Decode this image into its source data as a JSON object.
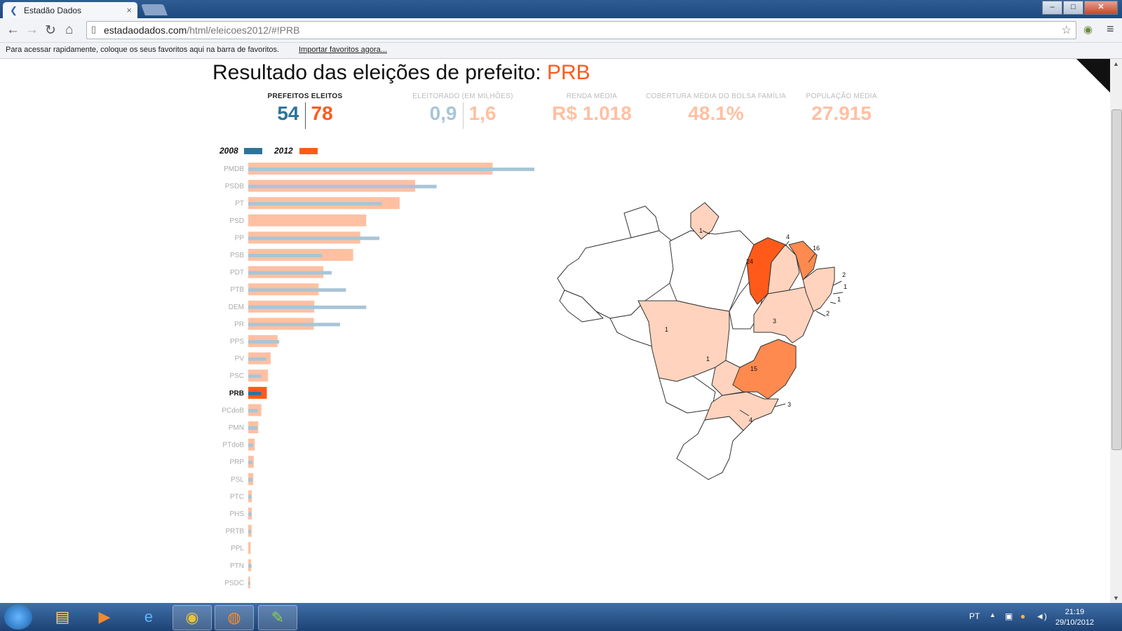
{
  "browser": {
    "tab_title": "Estadão Dados",
    "tab_close": "×",
    "url_host": "estadaodados.com",
    "url_rest": "/html/eleicoes2012/#!PRB",
    "bookmarks_msg": "Para acessar rapidamente, coloque os seus favoritos aqui na barra de favoritos.",
    "bookmarks_import": "Importar favoritos agora...",
    "win_min": "–",
    "win_max": "□",
    "win_close": "✕"
  },
  "page": {
    "title_prefix": "Resultado das eleições de prefeito: ",
    "title_party": "PRB",
    "stats": {
      "prefeitos_label": "PREFEITOS ELEITOS",
      "prefeitos_2008": "54",
      "prefeitos_2012": "78",
      "eleitorado_label": "ELEITORADO (EM MILHÕES)",
      "eleitorado_2008": "0,9",
      "eleitorado_2012": "1,6",
      "renda_label": "RENDA MÉDIA",
      "renda_value": "R$ 1.018",
      "bolsa_label": "COBERTURA MÉDIA DO BOLSA FAMÍLIA",
      "bolsa_value": "48.1%",
      "populacao_label": "POPULAÇÃO MÉDIA",
      "populacao_value": "27.915"
    },
    "legend": {
      "y2008": "2008",
      "y2012": "2012"
    },
    "map_labels": [
      "1",
      "4",
      "16",
      "24",
      "2",
      "1",
      "1",
      "2",
      "3",
      "1",
      "1",
      "15",
      "3",
      "4"
    ]
  },
  "colors": {
    "c2008": "#2d7499",
    "c2012": "#ff5a1a",
    "c2008_light": "#a9c5d6",
    "c2012_light": "#ffc0a2",
    "map_light": "#ffd3bd",
    "map_mid": "#ff8a50",
    "map_dark": "#ff5a1a"
  },
  "chart_data": {
    "type": "bar",
    "categories": [
      "PMDB",
      "PSDB",
      "PT",
      "PSD",
      "PP",
      "PSB",
      "PDT",
      "PTB",
      "DEM",
      "PR",
      "PPS",
      "PV",
      "PSC",
      "PRB",
      "PCdoB",
      "PMN",
      "PTdoB",
      "PRP",
      "PSL",
      "PTC",
      "PHS",
      "PRTB",
      "PPL",
      "PTN",
      "PSDC"
    ],
    "highlight": "PRB",
    "series": [
      {
        "name": "2008",
        "values": [
          1200,
          790,
          560,
          0,
          550,
          310,
          350,
          410,
          495,
          385,
          130,
          75,
          55,
          54,
          40,
          38,
          20,
          18,
          18,
          14,
          14,
          12,
          0,
          14,
          8
        ]
      },
      {
        "name": "2012",
        "values": [
          1025,
          700,
          635,
          495,
          470,
          440,
          315,
          295,
          277,
          275,
          123,
          94,
          83,
          78,
          55,
          42,
          27,
          23,
          21,
          15,
          15,
          14,
          10,
          12,
          8
        ]
      }
    ]
  },
  "taskbar": {
    "lang": "PT",
    "time": "21:19",
    "date": "29/10/2012"
  }
}
